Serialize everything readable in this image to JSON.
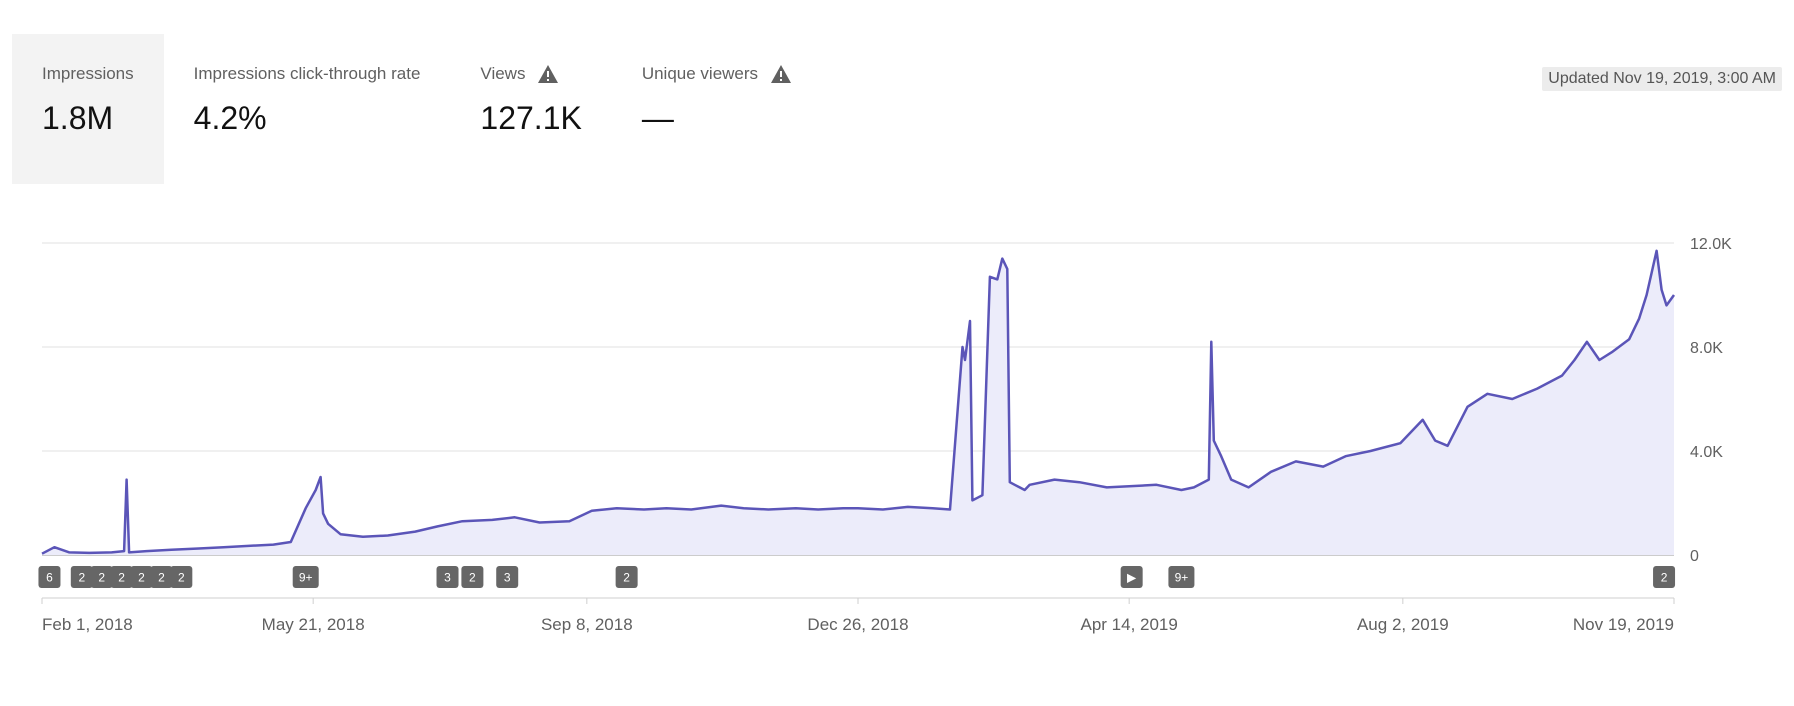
{
  "metrics": [
    {
      "label": "Impressions",
      "value": "1.8M",
      "warning": false,
      "selected": true
    },
    {
      "label": "Impressions click-through rate",
      "value": "4.2%",
      "warning": false,
      "selected": false
    },
    {
      "label": "Views",
      "value": "127.1K",
      "warning": true,
      "selected": false
    },
    {
      "label": "Unique viewers",
      "value": "—",
      "warning": true,
      "selected": false
    }
  ],
  "updated": "Updated Nov 19, 2019, 3:00 AM",
  "chart_data": {
    "type": "area",
    "ylim": [
      0,
      12000
    ],
    "yticks": [
      0,
      4000,
      8000,
      12000
    ],
    "ytick_labels": [
      "0",
      "4.0K",
      "8.0K",
      "12.0K"
    ],
    "xlim": [
      "2018-02-01",
      "2019-11-19"
    ],
    "xtick_dates": [
      "2018-02-01",
      "2018-05-21",
      "2018-09-08",
      "2018-12-26",
      "2019-04-14",
      "2019-08-02",
      "2019-11-19"
    ],
    "xtick_labels": [
      "Feb 1, 2018",
      "May 21, 2018",
      "Sep 8, 2018",
      "Dec 26, 2018",
      "Apr 14, 2019",
      "Aug 2, 2019",
      "Nov 19, 2019"
    ],
    "colors": {
      "line": "#5b55b8",
      "fill": "#ececfa",
      "grid": "#e0e0e0",
      "annotation": "#666666"
    },
    "series": [
      {
        "x": [
          "2018-02-01",
          "2018-02-06",
          "2018-02-12",
          "2018-02-20",
          "2018-03-01",
          "2018-03-06",
          "2018-03-07",
          "2018-03-08",
          "2018-03-15",
          "2018-03-25",
          "2018-04-05",
          "2018-04-15",
          "2018-04-25",
          "2018-05-05",
          "2018-05-12",
          "2018-05-18",
          "2018-05-22",
          "2018-05-24",
          "2018-05-25",
          "2018-05-27",
          "2018-06-01",
          "2018-06-10",
          "2018-06-20",
          "2018-07-01",
          "2018-07-10",
          "2018-07-20",
          "2018-08-01",
          "2018-08-10",
          "2018-08-20",
          "2018-09-01",
          "2018-09-10",
          "2018-09-20",
          "2018-10-01",
          "2018-10-10",
          "2018-10-20",
          "2018-11-01",
          "2018-11-10",
          "2018-11-20",
          "2018-12-01",
          "2018-12-10",
          "2018-12-20",
          "2018-12-26",
          "2019-01-05",
          "2019-01-15",
          "2019-01-25",
          "2019-02-01",
          "2019-02-06",
          "2019-02-07",
          "2019-02-09",
          "2019-02-10",
          "2019-02-12",
          "2019-02-14",
          "2019-02-17",
          "2019-02-20",
          "2019-02-22",
          "2019-02-24",
          "2019-02-25",
          "2019-02-27",
          "2019-03-01",
          "2019-03-03",
          "2019-03-05",
          "2019-03-15",
          "2019-03-25",
          "2019-04-05",
          "2019-04-15",
          "2019-04-25",
          "2019-05-05",
          "2019-05-10",
          "2019-05-16",
          "2019-05-17",
          "2019-05-18",
          "2019-05-21",
          "2019-05-25",
          "2019-06-01",
          "2019-06-10",
          "2019-06-20",
          "2019-07-01",
          "2019-07-10",
          "2019-07-20",
          "2019-08-01",
          "2019-08-10",
          "2019-08-15",
          "2019-08-20",
          "2019-08-28",
          "2019-09-05",
          "2019-09-15",
          "2019-09-25",
          "2019-10-05",
          "2019-10-10",
          "2019-10-15",
          "2019-10-20",
          "2019-10-25",
          "2019-11-01",
          "2019-11-05",
          "2019-11-08",
          "2019-11-12",
          "2019-11-14",
          "2019-11-16",
          "2019-11-19"
        ],
        "y": [
          50,
          300,
          100,
          80,
          100,
          150,
          2900,
          100,
          150,
          200,
          250,
          300,
          350,
          400,
          500,
          1800,
          2500,
          3000,
          1600,
          1200,
          800,
          700,
          750,
          900,
          1100,
          1300,
          1350,
          1450,
          1250,
          1300,
          1700,
          1800,
          1750,
          1800,
          1750,
          1900,
          1800,
          1750,
          1800,
          1750,
          1800,
          1800,
          1750,
          1850,
          1800,
          1750,
          8000,
          7500,
          9000,
          2100,
          2200,
          2300,
          10700,
          10600,
          11400,
          11000,
          2800,
          2700,
          2600,
          2500,
          2700,
          2900,
          2800,
          2600,
          2650,
          2700,
          2500,
          2600,
          2900,
          8200,
          4400,
          3800,
          2900,
          2600,
          3200,
          3600,
          3400,
          3800,
          4000,
          4300,
          5200,
          4400,
          4200,
          5700,
          6200,
          6000,
          6400,
          6900,
          7500,
          8200,
          7500,
          7800,
          8300,
          9100,
          10000,
          11700,
          10200,
          9600,
          10000
        ]
      }
    ],
    "annotations": [
      {
        "date": "2018-02-04",
        "label": "6"
      },
      {
        "date": "2018-02-17",
        "label": "2"
      },
      {
        "date": "2018-02-25",
        "label": "2"
      },
      {
        "date": "2018-03-05",
        "label": "2"
      },
      {
        "date": "2018-03-13",
        "label": "2"
      },
      {
        "date": "2018-03-21",
        "label": "2"
      },
      {
        "date": "2018-03-29",
        "label": "2"
      },
      {
        "date": "2018-05-18",
        "label": "9+"
      },
      {
        "date": "2018-07-14",
        "label": "3"
      },
      {
        "date": "2018-07-24",
        "label": "2"
      },
      {
        "date": "2018-08-07",
        "label": "3"
      },
      {
        "date": "2018-09-24",
        "label": "2"
      },
      {
        "date": "2019-04-15",
        "label": "▶"
      },
      {
        "date": "2019-05-05",
        "label": "9+"
      },
      {
        "date": "2019-11-15",
        "label": "2"
      }
    ]
  }
}
